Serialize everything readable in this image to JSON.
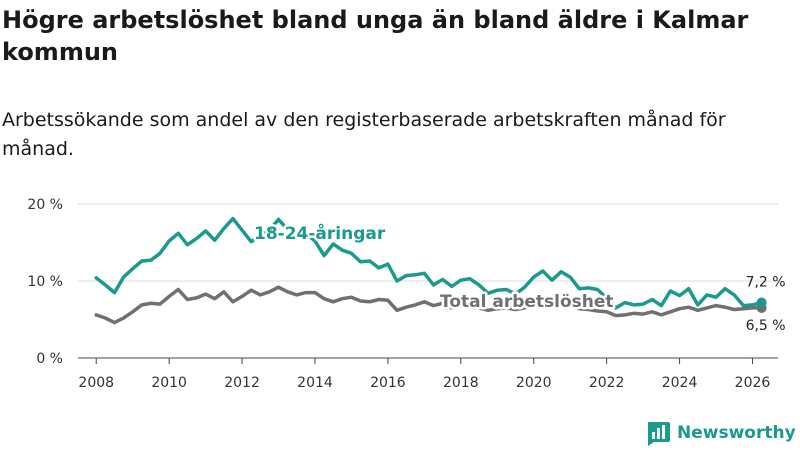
{
  "header": {
    "title": "Högre arbetslöshet bland unga än bland äldre i Kalmar kommun",
    "subtitle": "Arbetssökande som andel av den registerbaserade arbetskraften månad för månad."
  },
  "brand": {
    "name": "Newsworthy",
    "logo_icon": "bar-chart-icon",
    "color": "#1a9a8c"
  },
  "chart_data": {
    "type": "line",
    "title": "Högre arbetslöshet bland unga än bland äldre i Kalmar kommun",
    "subtitle": "Arbetssökande som andel av den registerbaserade arbetskraften månad för månad.",
    "xlabel": "",
    "ylabel": "",
    "xlim": [
      2007.5,
      2026.7
    ],
    "ylim": [
      0,
      20
    ],
    "grid": true,
    "y_ticks": [
      {
        "value": 0,
        "label": "0 %"
      },
      {
        "value": 10,
        "label": "10 %"
      },
      {
        "value": 20,
        "label": "20 %"
      }
    ],
    "x_ticks": [
      {
        "value": 2008,
        "label": "2008"
      },
      {
        "value": 2010,
        "label": "2010"
      },
      {
        "value": 2012,
        "label": "2012"
      },
      {
        "value": 2014,
        "label": "2014"
      },
      {
        "value": 2016,
        "label": "2016"
      },
      {
        "value": 2018,
        "label": "2018"
      },
      {
        "value": 2020,
        "label": "2020"
      },
      {
        "value": 2022,
        "label": "2022"
      },
      {
        "value": 2024,
        "label": "2024"
      },
      {
        "value": 2026,
        "label": "2026"
      }
    ],
    "series": [
      {
        "name": "18-24-åringar",
        "label": "18-24-åringar",
        "color": "#1a9a8c",
        "end_label": "7,2 %",
        "points": [
          [
            2008.0,
            10.4
          ],
          [
            2008.25,
            9.5
          ],
          [
            2008.5,
            8.5
          ],
          [
            2008.75,
            10.5
          ],
          [
            2009.0,
            11.6
          ],
          [
            2009.25,
            12.6
          ],
          [
            2009.5,
            12.7
          ],
          [
            2009.75,
            13.6
          ],
          [
            2010.0,
            15.2
          ],
          [
            2010.25,
            16.2
          ],
          [
            2010.5,
            14.7
          ],
          [
            2010.75,
            15.5
          ],
          [
            2011.0,
            16.5
          ],
          [
            2011.25,
            15.3
          ],
          [
            2011.5,
            16.8
          ],
          [
            2011.75,
            18.1
          ],
          [
            2012.0,
            16.6
          ],
          [
            2012.25,
            15.1
          ],
          [
            2012.5,
            15.9
          ],
          [
            2012.75,
            16.6
          ],
          [
            2013.0,
            18.0
          ],
          [
            2013.25,
            16.7
          ],
          [
            2013.5,
            15.9
          ],
          [
            2013.75,
            16.2
          ],
          [
            2014.0,
            15.2
          ],
          [
            2014.25,
            13.3
          ],
          [
            2014.5,
            14.8
          ],
          [
            2014.75,
            14.0
          ],
          [
            2015.0,
            13.6
          ],
          [
            2015.25,
            12.5
          ],
          [
            2015.5,
            12.6
          ],
          [
            2015.75,
            11.7
          ],
          [
            2016.0,
            12.2
          ],
          [
            2016.25,
            10.0
          ],
          [
            2016.5,
            10.7
          ],
          [
            2016.75,
            10.8
          ],
          [
            2017.0,
            11.0
          ],
          [
            2017.25,
            9.5
          ],
          [
            2017.5,
            10.2
          ],
          [
            2017.75,
            9.3
          ],
          [
            2018.0,
            10.1
          ],
          [
            2018.25,
            10.3
          ],
          [
            2018.5,
            9.5
          ],
          [
            2018.75,
            8.4
          ],
          [
            2019.0,
            8.8
          ],
          [
            2019.25,
            8.9
          ],
          [
            2019.5,
            8.3
          ],
          [
            2019.75,
            9.2
          ],
          [
            2020.0,
            10.5
          ],
          [
            2020.25,
            11.3
          ],
          [
            2020.5,
            10.1
          ],
          [
            2020.75,
            11.2
          ],
          [
            2021.0,
            10.5
          ],
          [
            2021.25,
            9.0
          ],
          [
            2021.5,
            9.1
          ],
          [
            2021.75,
            8.9
          ],
          [
            2022.0,
            7.8
          ],
          [
            2022.25,
            6.5
          ],
          [
            2022.5,
            7.2
          ],
          [
            2022.75,
            6.9
          ],
          [
            2023.0,
            7.0
          ],
          [
            2023.25,
            7.6
          ],
          [
            2023.5,
            6.8
          ],
          [
            2023.75,
            8.7
          ],
          [
            2024.0,
            8.1
          ],
          [
            2024.25,
            9.0
          ],
          [
            2024.5,
            6.9
          ],
          [
            2024.75,
            8.2
          ],
          [
            2025.0,
            7.9
          ],
          [
            2025.25,
            9.0
          ],
          [
            2025.5,
            8.2
          ],
          [
            2025.75,
            6.8
          ],
          [
            2026.0,
            6.9
          ],
          [
            2026.25,
            7.2
          ]
        ]
      },
      {
        "name": "Total arbetslöshet",
        "label": "Total arbetslöshet",
        "color": "#707070",
        "end_label": "6,5 %",
        "points": [
          [
            2008.0,
            5.6
          ],
          [
            2008.25,
            5.2
          ],
          [
            2008.5,
            4.6
          ],
          [
            2008.75,
            5.2
          ],
          [
            2009.0,
            6.0
          ],
          [
            2009.25,
            6.9
          ],
          [
            2009.5,
            7.1
          ],
          [
            2009.75,
            7.0
          ],
          [
            2010.0,
            8.0
          ],
          [
            2010.25,
            8.9
          ],
          [
            2010.5,
            7.6
          ],
          [
            2010.75,
            7.8
          ],
          [
            2011.0,
            8.3
          ],
          [
            2011.25,
            7.7
          ],
          [
            2011.5,
            8.6
          ],
          [
            2011.75,
            7.3
          ],
          [
            2012.0,
            8.0
          ],
          [
            2012.25,
            8.8
          ],
          [
            2012.5,
            8.2
          ],
          [
            2012.75,
            8.6
          ],
          [
            2013.0,
            9.2
          ],
          [
            2013.25,
            8.6
          ],
          [
            2013.5,
            8.2
          ],
          [
            2013.75,
            8.5
          ],
          [
            2014.0,
            8.5
          ],
          [
            2014.25,
            7.7
          ],
          [
            2014.5,
            7.3
          ],
          [
            2014.75,
            7.7
          ],
          [
            2015.0,
            7.9
          ],
          [
            2015.25,
            7.4
          ],
          [
            2015.5,
            7.3
          ],
          [
            2015.75,
            7.6
          ],
          [
            2016.0,
            7.5
          ],
          [
            2016.25,
            6.2
          ],
          [
            2016.5,
            6.6
          ],
          [
            2016.75,
            6.9
          ],
          [
            2017.0,
            7.3
          ],
          [
            2017.25,
            6.8
          ],
          [
            2017.5,
            7.1
          ],
          [
            2017.75,
            6.5
          ],
          [
            2018.0,
            6.8
          ],
          [
            2018.25,
            6.6
          ],
          [
            2018.5,
            6.5
          ],
          [
            2018.75,
            6.2
          ],
          [
            2019.0,
            6.4
          ],
          [
            2019.25,
            6.5
          ],
          [
            2019.5,
            6.3
          ],
          [
            2019.75,
            6.5
          ],
          [
            2020.0,
            7.1
          ],
          [
            2020.25,
            7.7
          ],
          [
            2020.5,
            7.2
          ],
          [
            2020.75,
            7.0
          ],
          [
            2021.0,
            6.8
          ],
          [
            2021.25,
            6.4
          ],
          [
            2021.5,
            6.3
          ],
          [
            2021.75,
            6.1
          ],
          [
            2022.0,
            6.0
          ],
          [
            2022.25,
            5.5
          ],
          [
            2022.5,
            5.6
          ],
          [
            2022.75,
            5.8
          ],
          [
            2023.0,
            5.7
          ],
          [
            2023.25,
            6.0
          ],
          [
            2023.5,
            5.6
          ],
          [
            2023.75,
            6.0
          ],
          [
            2024.0,
            6.4
          ],
          [
            2024.25,
            6.6
          ],
          [
            2024.5,
            6.2
          ],
          [
            2024.75,
            6.5
          ],
          [
            2025.0,
            6.8
          ],
          [
            2025.25,
            6.6
          ],
          [
            2025.5,
            6.3
          ],
          [
            2025.75,
            6.4
          ],
          [
            2026.0,
            6.5
          ],
          [
            2026.25,
            6.5
          ]
        ]
      }
    ]
  }
}
